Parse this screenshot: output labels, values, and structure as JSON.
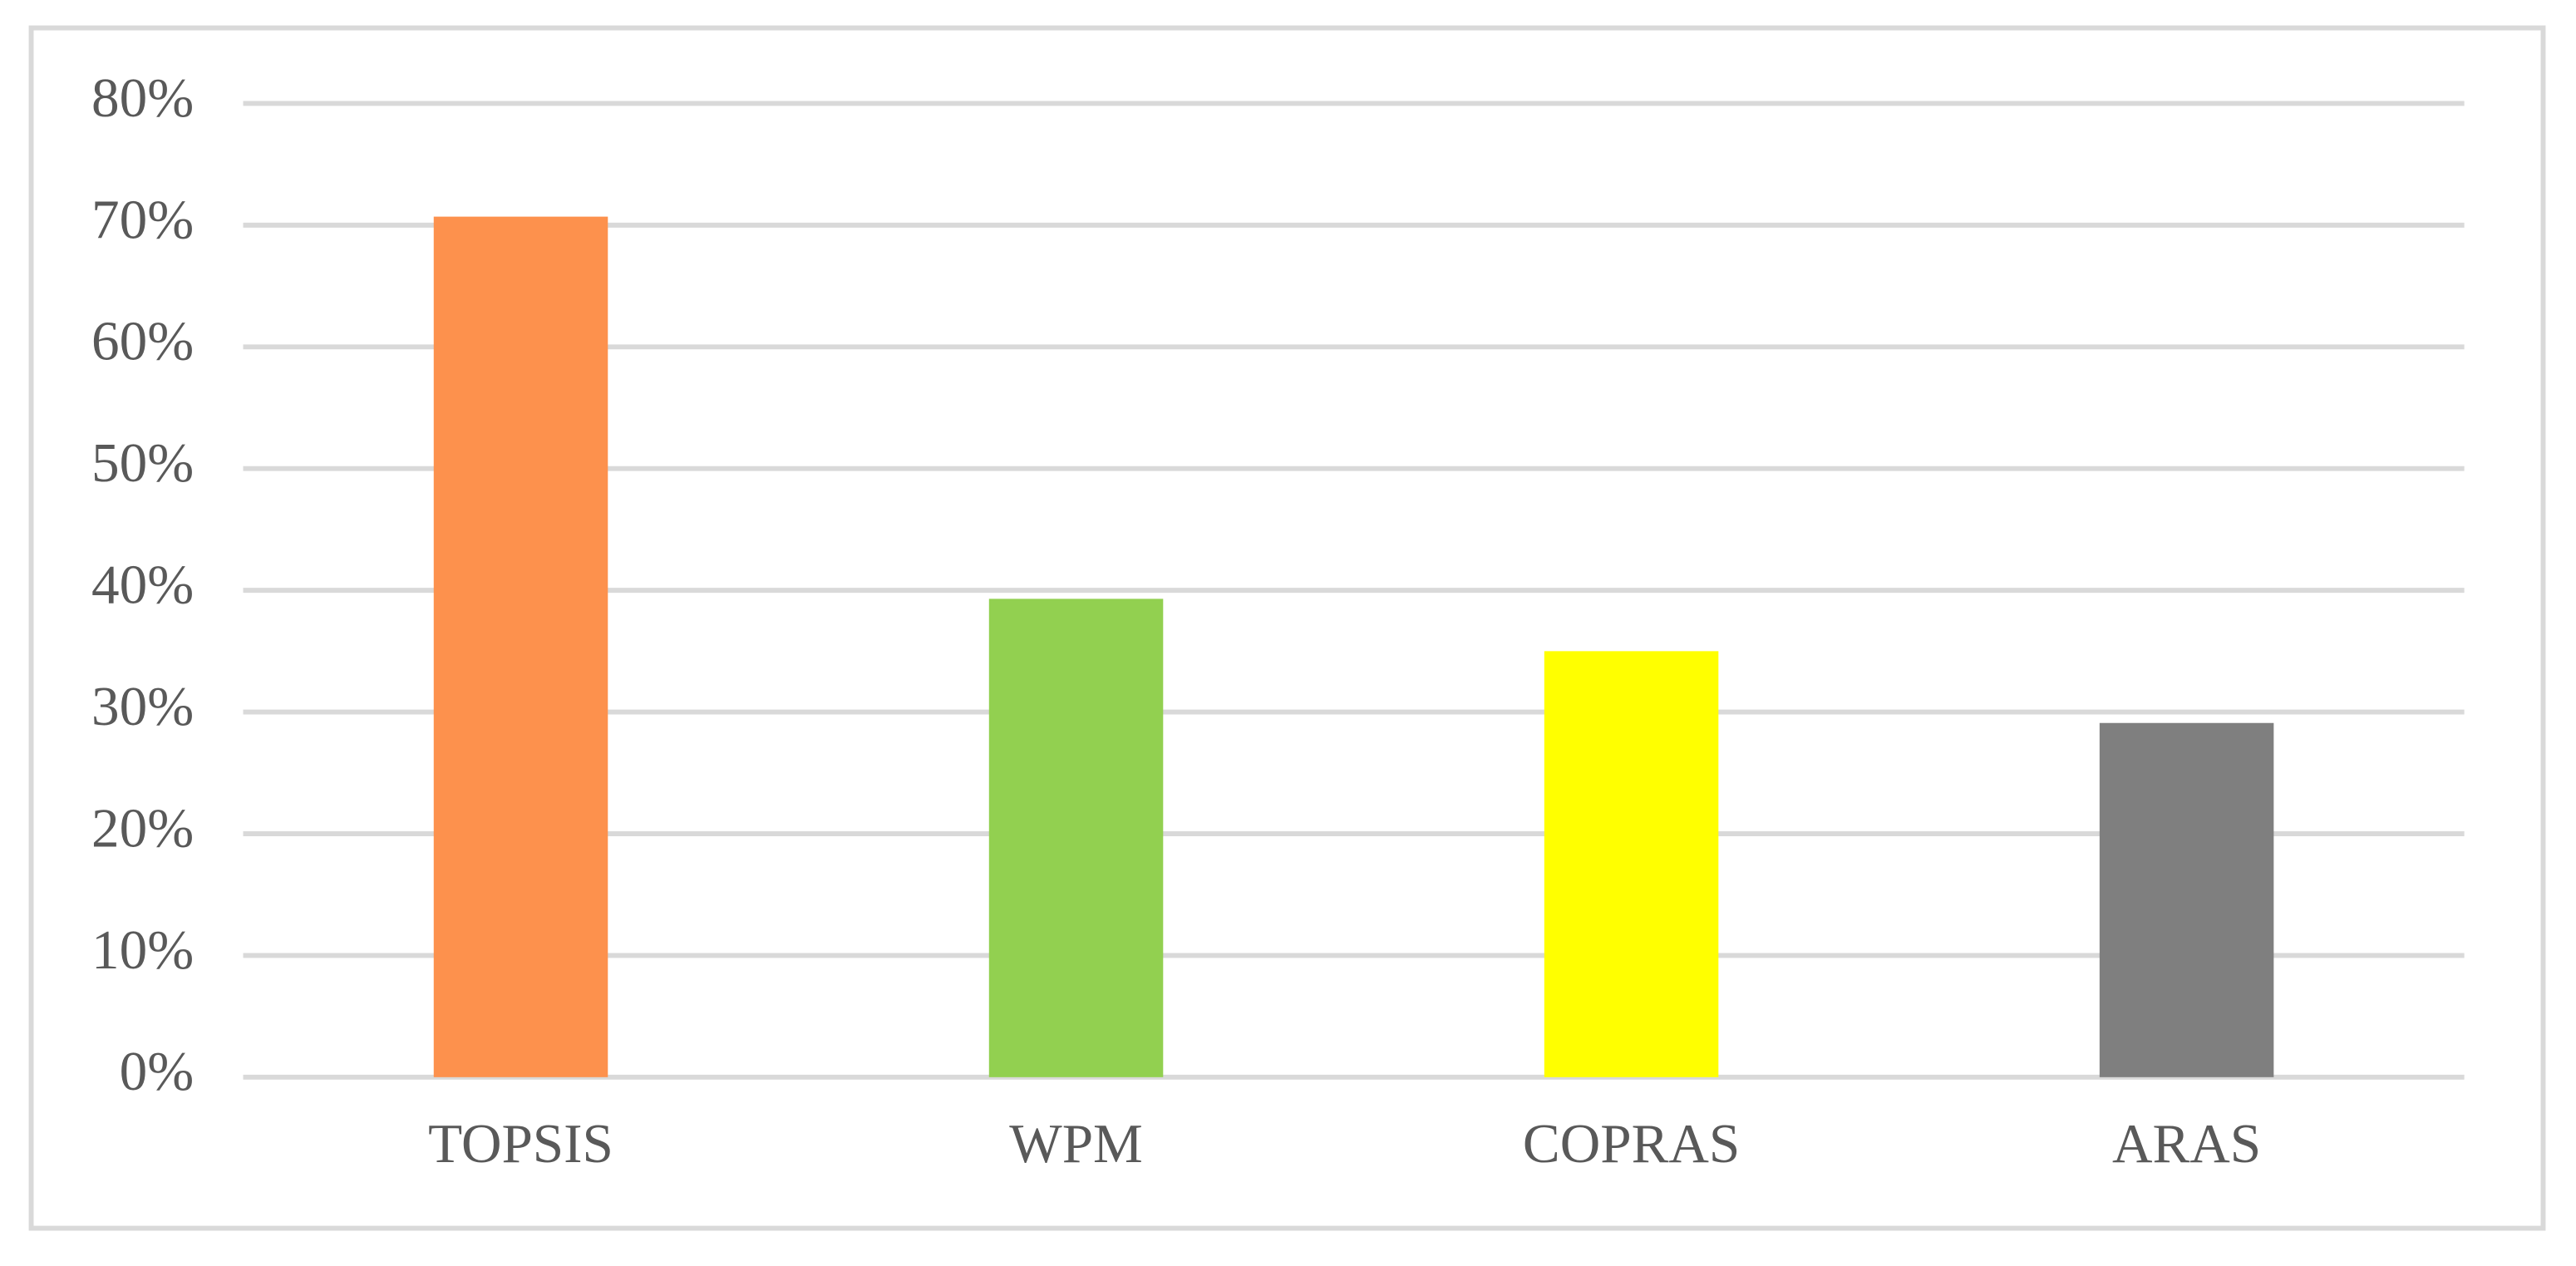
{
  "chart_data": {
    "type": "bar",
    "categories": [
      "TOPSIS",
      "WPM",
      "COPRAS",
      "ARAS"
    ],
    "values": [
      70.7,
      39.3,
      35,
      29.1
    ],
    "colors": [
      "#fd914d",
      "#92d050",
      "#ffff00",
      "#7f7f7f"
    ],
    "ylim": [
      0,
      80
    ],
    "yticks": [
      {
        "value": 0,
        "label": "0%"
      },
      {
        "value": 10,
        "label": "10%"
      },
      {
        "value": 20,
        "label": "20%"
      },
      {
        "value": 30,
        "label": "30%"
      },
      {
        "value": 40,
        "label": "40%"
      },
      {
        "value": 50,
        "label": "50%"
      },
      {
        "value": 60,
        "label": "60%"
      },
      {
        "value": 70,
        "label": "70%"
      },
      {
        "value": 80,
        "label": "80%"
      }
    ],
    "grid": true
  }
}
